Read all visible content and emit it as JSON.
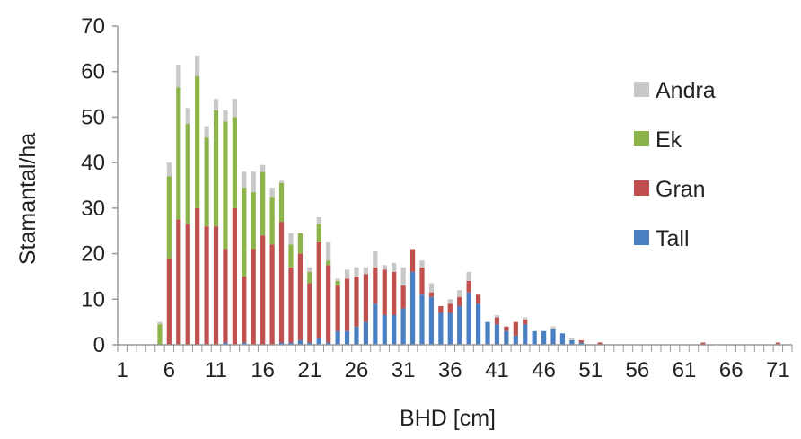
{
  "chart_data": {
    "type": "bar",
    "stacked": true,
    "title": "",
    "xlabel": "BHD [cm]",
    "ylabel": "Stamantal/ha",
    "ylim": [
      0,
      70
    ],
    "yticks": [
      "0",
      "10",
      "20",
      "30",
      "40",
      "50",
      "60",
      "70"
    ],
    "xtick_labels": [
      "1",
      "6",
      "11",
      "16",
      "21",
      "26",
      "31",
      "36",
      "41",
      "46",
      "51",
      "56",
      "61",
      "66",
      "71"
    ],
    "categories": [
      1,
      2,
      3,
      4,
      5,
      6,
      7,
      8,
      9,
      10,
      11,
      12,
      13,
      14,
      15,
      16,
      17,
      18,
      19,
      20,
      21,
      22,
      23,
      24,
      25,
      26,
      27,
      28,
      29,
      30,
      31,
      32,
      33,
      34,
      35,
      36,
      37,
      38,
      39,
      40,
      41,
      42,
      43,
      44,
      45,
      46,
      47,
      48,
      49,
      50,
      51,
      52,
      53,
      54,
      55,
      56,
      57,
      58,
      59,
      60,
      61,
      62,
      63,
      64,
      65,
      66,
      67,
      68,
      69,
      70,
      71,
      72
    ],
    "series": [
      {
        "name": "Tall",
        "color": "#4a7fc1",
        "values": [
          0,
          0,
          0,
          0,
          0,
          0,
          0,
          0,
          0,
          0,
          0,
          0.5,
          0,
          0.5,
          0,
          0,
          0,
          0.5,
          0.5,
          1,
          0.5,
          1.5,
          0.5,
          3,
          3,
          4,
          5,
          9,
          6.5,
          6.5,
          8,
          16,
          11,
          10.5,
          7,
          7,
          8.5,
          11.5,
          9,
          5,
          4.5,
          3,
          2,
          4.5,
          3,
          3,
          3.5,
          2.5,
          1,
          0.5,
          0,
          0,
          0,
          0,
          0,
          0,
          0,
          0,
          0,
          0,
          0,
          0,
          0,
          0,
          0,
          0,
          0,
          0,
          0,
          0,
          0,
          0
        ]
      },
      {
        "name": "Gran",
        "color": "#c0504d",
        "values": [
          0,
          0,
          0,
          0,
          0,
          19,
          27.5,
          26.5,
          30,
          26,
          26,
          20.5,
          30,
          14.5,
          21,
          24,
          22,
          26.5,
          16.5,
          19,
          13,
          21,
          17,
          10,
          11.5,
          11,
          10.5,
          8,
          10,
          9.5,
          5,
          5,
          6,
          1,
          1.5,
          2,
          2,
          2.5,
          2,
          0,
          1.5,
          1,
          3,
          1,
          0,
          0,
          0,
          0,
          0,
          0.5,
          0,
          0.5,
          0,
          0,
          0,
          0,
          0,
          0,
          0,
          0,
          0,
          0,
          0.5,
          0,
          0,
          0,
          0,
          0,
          0,
          0,
          0.5,
          0
        ]
      },
      {
        "name": "Ek",
        "color": "#8db44b",
        "values": [
          0,
          0,
          0,
          0,
          4.5,
          18,
          29,
          22,
          29,
          19.5,
          25.5,
          28,
          20,
          19.5,
          12.5,
          14,
          10.5,
          8.5,
          5,
          4.5,
          2.5,
          4,
          1,
          1,
          0,
          0,
          0,
          0,
          0,
          0,
          0,
          0,
          0,
          0,
          0,
          0,
          0,
          0,
          0,
          0,
          0,
          0,
          0,
          0,
          0,
          0,
          0,
          0,
          0,
          0,
          0,
          0,
          0,
          0,
          0,
          0,
          0,
          0,
          0,
          0,
          0,
          0,
          0,
          0,
          0,
          0,
          0,
          0,
          0,
          0,
          0,
          0
        ]
      },
      {
        "name": "Andra",
        "color": "#c8c8c8",
        "values": [
          0,
          0,
          0,
          0,
          0.5,
          3,
          5,
          3.5,
          4.5,
          2.5,
          2.5,
          2.5,
          4,
          3.5,
          4.5,
          1.5,
          2,
          0.5,
          2.5,
          0,
          1,
          1.5,
          4,
          0.5,
          2,
          2,
          1.5,
          3.5,
          1,
          2,
          4,
          0,
          1.5,
          2,
          0,
          1,
          1.5,
          2,
          0,
          0,
          0.5,
          0,
          0,
          0.5,
          0,
          0,
          0.5,
          0,
          0.5,
          0,
          0,
          0,
          0,
          0,
          0,
          0,
          0,
          0,
          0,
          0,
          0,
          0,
          0,
          0,
          0,
          0,
          0,
          0,
          0,
          0,
          0,
          0
        ]
      }
    ],
    "legend": {
      "position": "right",
      "order": [
        "Andra",
        "Ek",
        "Gran",
        "Tall"
      ]
    },
    "grid": false
  }
}
